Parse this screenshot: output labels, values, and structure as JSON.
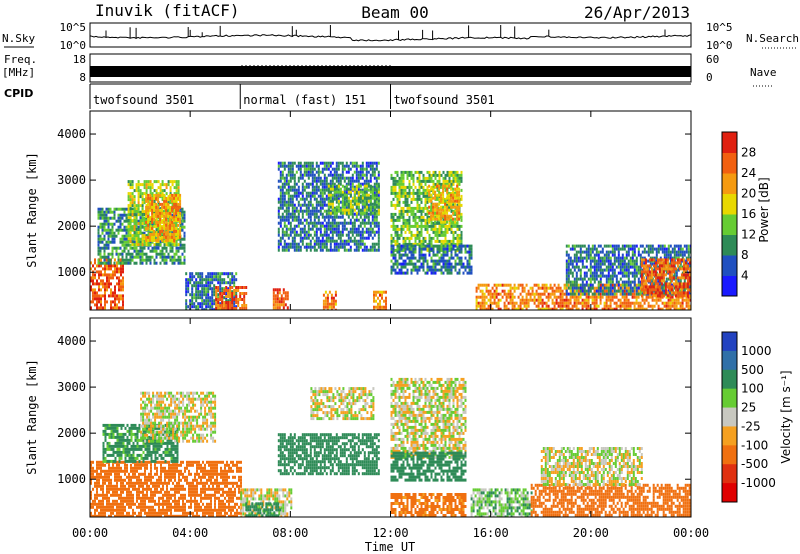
{
  "header": {
    "station": "Inuvik (fitACF)",
    "beam": "Beam 00",
    "date": "26/Apr/2013"
  },
  "panels": {
    "nsky": {
      "label": "N.Sky",
      "tick_top": "10^5",
      "tick_bot": "10^0"
    },
    "nsearch": {
      "label": "N.Search",
      "tick_top": "10^5",
      "tick_bot": "10^0"
    },
    "freq": {
      "label_line1": "Freq.",
      "label_line2": "[MHz]",
      "tick_top": "18",
      "tick_bot": "8"
    },
    "nave": {
      "label": "Nave",
      "tick_top": "60",
      "tick_bot": "0"
    },
    "cpid": {
      "label": "CPID",
      "segments": [
        {
          "label": "twofsound 3501",
          "start_h": 0,
          "end_h": 6
        },
        {
          "label": "normal (fast) 151",
          "start_h": 6,
          "end_h": 12
        },
        {
          "label": "twofsound 3501",
          "start_h": 12,
          "end_h": 24
        }
      ]
    }
  },
  "axes": {
    "x_label": "Time UT",
    "x_ticks": [
      "00:00",
      "04:00",
      "08:00",
      "12:00",
      "16:00",
      "20:00",
      "00:00"
    ],
    "y_label": "Slant Range [km]",
    "y_ticks": [
      "1000",
      "2000",
      "3000",
      "4000"
    ]
  },
  "colorbars": {
    "power": {
      "label": "Power [dB]",
      "ticks": [
        "4",
        "8",
        "12",
        "16",
        "20",
        "24",
        "28"
      ],
      "colors": [
        "#1a1aff",
        "#2050c0",
        "#2e8b57",
        "#66cc33",
        "#e8d800",
        "#f59a10",
        "#f26010",
        "#e02010"
      ]
    },
    "velocity": {
      "label": "Velocity [m s⁻¹]",
      "ticks": [
        "1000",
        "500",
        "100",
        "25",
        "-25",
        "-100",
        "-500",
        "-1000"
      ],
      "colors": [
        "#2242c0",
        "#3070a8",
        "#2e8b57",
        "#66cc33",
        "#c8c8c0",
        "#f5a020",
        "#f07010",
        "#e03010",
        "#e00000"
      ]
    }
  },
  "chart_data": {
    "type": "heatmap",
    "x_range_h": [
      0,
      24
    ],
    "y_range_km": [
      180,
      4500
    ],
    "power_regions": [
      {
        "t0": 0.0,
        "t1": 1.3,
        "r0": 180,
        "r1": 1300,
        "v": 26
      },
      {
        "t0": 0.3,
        "t1": 3.8,
        "r0": 1200,
        "r1": 2400,
        "v": 10
      },
      {
        "t0": 1.5,
        "t1": 3.5,
        "r0": 1600,
        "r1": 3000,
        "v": 16
      },
      {
        "t0": 2.2,
        "t1": 3.6,
        "r0": 1700,
        "r1": 2700,
        "v": 22
      },
      {
        "t0": 3.8,
        "t1": 5.8,
        "r0": 180,
        "r1": 1000,
        "v": 8
      },
      {
        "t0": 5.0,
        "t1": 6.2,
        "r0": 180,
        "r1": 700,
        "v": 26
      },
      {
        "t0": 7.3,
        "t1": 7.9,
        "r0": 180,
        "r1": 650,
        "v": 26
      },
      {
        "t0": 7.5,
        "t1": 11.5,
        "r0": 1500,
        "r1": 3400,
        "v": 8
      },
      {
        "t0": 9.5,
        "t1": 11.5,
        "r0": 2300,
        "r1": 2900,
        "v": 14
      },
      {
        "t0": 9.3,
        "t1": 9.8,
        "r0": 180,
        "r1": 600,
        "v": 24
      },
      {
        "t0": 11.3,
        "t1": 11.8,
        "r0": 180,
        "r1": 600,
        "v": 24
      },
      {
        "t0": 12.0,
        "t1": 14.8,
        "r0": 1500,
        "r1": 3200,
        "v": 14
      },
      {
        "t0": 13.5,
        "t1": 14.7,
        "r0": 2100,
        "r1": 2900,
        "v": 20
      },
      {
        "t0": 12.0,
        "t1": 15.2,
        "r0": 1000,
        "r1": 1600,
        "v": 8
      },
      {
        "t0": 15.4,
        "t1": 24.0,
        "r0": 180,
        "r1": 750,
        "v": 24
      },
      {
        "t0": 19.0,
        "t1": 24.0,
        "r0": 500,
        "r1": 1600,
        "v": 8
      },
      {
        "t0": 22.0,
        "t1": 24.0,
        "r0": 500,
        "r1": 1300,
        "v": 26
      }
    ],
    "velocity_regions": [
      {
        "t0": 0.0,
        "t1": 6.0,
        "r0": 180,
        "r1": 1400,
        "v": -300
      },
      {
        "t0": 0.5,
        "t1": 3.5,
        "r0": 1400,
        "r1": 2200,
        "v": 150
      },
      {
        "t0": 2.0,
        "t1": 5.0,
        "r0": 1800,
        "r1": 2900,
        "v": 0
      },
      {
        "t0": 6.0,
        "t1": 8.0,
        "r0": 180,
        "r1": 800,
        "v": 0
      },
      {
        "t0": 6.2,
        "t1": 7.6,
        "r0": 180,
        "r1": 500,
        "v": 300
      },
      {
        "t0": 8.8,
        "t1": 11.3,
        "r0": 2300,
        "r1": 3000,
        "v": 0
      },
      {
        "t0": 7.5,
        "t1": 11.5,
        "r0": 1100,
        "r1": 2000,
        "v": 400
      },
      {
        "t0": 12.0,
        "t1": 15.0,
        "r0": 1500,
        "r1": 3200,
        "v": 0
      },
      {
        "t0": 12.0,
        "t1": 15.0,
        "r0": 1000,
        "r1": 1600,
        "v": 200
      },
      {
        "t0": 12.0,
        "t1": 15.0,
        "r0": 180,
        "r1": 700,
        "v": -150
      },
      {
        "t0": 15.2,
        "t1": 17.6,
        "r0": 180,
        "r1": 800,
        "v": 60
      },
      {
        "t0": 17.6,
        "t1": 24.0,
        "r0": 180,
        "r1": 900,
        "v": -250
      },
      {
        "t0": 18.0,
        "t1": 22.0,
        "r0": 900,
        "r1": 1700,
        "v": 0
      }
    ]
  }
}
